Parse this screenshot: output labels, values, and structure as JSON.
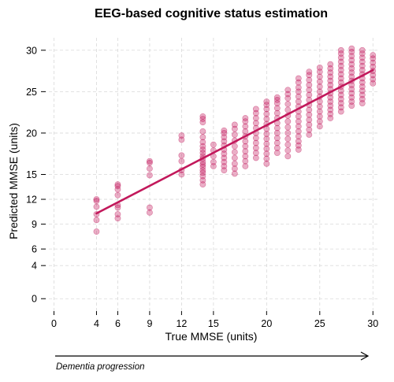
{
  "chart_data": {
    "type": "scatter",
    "title": "EEG-based cognitive status estimation",
    "xlabel": "True MMSE (units)",
    "ylabel": "Predicted MMSE (units)",
    "xlim": [
      -1,
      30.5
    ],
    "ylim": [
      -1.5,
      31.5
    ],
    "x_ticks": [
      0,
      4,
      6,
      9,
      12,
      15,
      20,
      25,
      30
    ],
    "y_ticks": [
      0,
      4,
      6,
      9,
      12,
      15,
      20,
      25,
      30
    ],
    "grid": true,
    "point_color": "#c2185b",
    "point_alpha": 0.35,
    "fit_line_color": "#c2185b",
    "fit_line": {
      "x": [
        4,
        30
      ],
      "y": [
        10.3,
        27.6
      ]
    },
    "points": [
      {
        "x": 4,
        "y": [
          8.1,
          9.5,
          10.2,
          11.1,
          11.8,
          12.0
        ]
      },
      {
        "x": 6,
        "y": [
          9.7,
          10.2,
          11.0,
          11.3,
          12.5,
          13.2,
          13.6,
          13.8
        ]
      },
      {
        "x": 9,
        "y": [
          10.4,
          11.0,
          14.9,
          15.7,
          16.4,
          16.6
        ]
      },
      {
        "x": 12,
        "y": [
          15.0,
          15.5,
          16.6,
          17.3,
          19.2,
          19.7
        ]
      },
      {
        "x": 14,
        "y": [
          13.8,
          14.3,
          14.8,
          15.2,
          15.5,
          15.9,
          16.2,
          16.5,
          16.9,
          17.2,
          17.6,
          18.0,
          18.4,
          18.9,
          19.5,
          20.2,
          21.3,
          21.7,
          22.0
        ]
      },
      {
        "x": 15,
        "y": [
          16.0,
          16.5,
          17.2,
          17.9,
          18.6
        ]
      },
      {
        "x": 16,
        "y": [
          15.5,
          16.0,
          16.5,
          17.0,
          17.5,
          18.0,
          18.5,
          19.0,
          19.5,
          20.0,
          20.3
        ]
      },
      {
        "x": 17,
        "y": [
          15.1,
          15.7,
          16.3,
          17.0,
          17.7,
          18.4,
          19.1,
          19.8,
          20.5,
          21.0
        ]
      },
      {
        "x": 18,
        "y": [
          16.0,
          16.6,
          17.2,
          17.8,
          18.4,
          19.0,
          19.6,
          20.2,
          20.8,
          21.4,
          21.8
        ]
      },
      {
        "x": 19,
        "y": [
          17.0,
          17.6,
          18.2,
          18.8,
          19.4,
          20.0,
          20.6,
          21.2,
          21.8,
          22.4,
          22.9
        ]
      },
      {
        "x": 20,
        "y": [
          16.3,
          16.9,
          17.5,
          18.1,
          18.7,
          19.3,
          19.9,
          20.5,
          21.1,
          21.7,
          22.3,
          22.9,
          23.4,
          23.8
        ]
      },
      {
        "x": 21,
        "y": [
          17.6,
          18.2,
          18.8,
          19.4,
          20.0,
          20.6,
          21.2,
          21.8,
          22.4,
          23.0,
          23.6,
          24.0,
          24.3
        ]
      },
      {
        "x": 22,
        "y": [
          17.2,
          17.9,
          18.6,
          19.3,
          20.0,
          20.7,
          21.4,
          22.1,
          22.8,
          23.5,
          24.2,
          24.7,
          25.2
        ]
      },
      {
        "x": 23,
        "y": [
          18.0,
          18.5,
          19.0,
          19.6,
          20.2,
          20.8,
          21.4,
          22.0,
          22.6,
          23.2,
          23.8,
          24.4,
          25.0,
          25.5,
          26.1,
          26.6
        ]
      },
      {
        "x": 24,
        "y": [
          19.8,
          20.4,
          21.0,
          21.6,
          22.2,
          22.8,
          23.4,
          24.0,
          24.6,
          25.2,
          25.8,
          26.4,
          27.0,
          27.4
        ]
      },
      {
        "x": 25,
        "y": [
          20.8,
          21.4,
          22.0,
          22.6,
          23.2,
          23.8,
          24.4,
          25.0,
          25.6,
          26.2,
          26.8,
          27.4,
          27.9
        ]
      },
      {
        "x": 26,
        "y": [
          21.8,
          22.3,
          22.8,
          23.3,
          23.8,
          24.3,
          24.8,
          25.3,
          25.8,
          26.3,
          26.8,
          27.3,
          27.8,
          28.3
        ]
      },
      {
        "x": 27,
        "y": [
          22.6,
          23.1,
          23.6,
          24.1,
          24.6,
          25.1,
          25.6,
          26.1,
          26.6,
          27.1,
          27.6,
          28.1,
          28.6,
          29.1,
          29.6,
          30.0
        ]
      },
      {
        "x": 28,
        "y": [
          23.3,
          23.8,
          24.3,
          24.8,
          25.3,
          25.8,
          26.3,
          26.8,
          27.3,
          27.8,
          28.3,
          28.8,
          29.3,
          29.8,
          30.2
        ]
      },
      {
        "x": 29,
        "y": [
          23.6,
          24.1,
          24.6,
          25.1,
          25.6,
          26.1,
          26.6,
          27.1,
          27.6,
          28.1,
          28.6,
          29.1,
          29.6,
          30.0
        ]
      },
      {
        "x": 30,
        "y": [
          26.0,
          26.5,
          27.0,
          27.5,
          28.0,
          28.5,
          29.0,
          29.4
        ]
      }
    ],
    "annotation": "Dementia progression"
  }
}
